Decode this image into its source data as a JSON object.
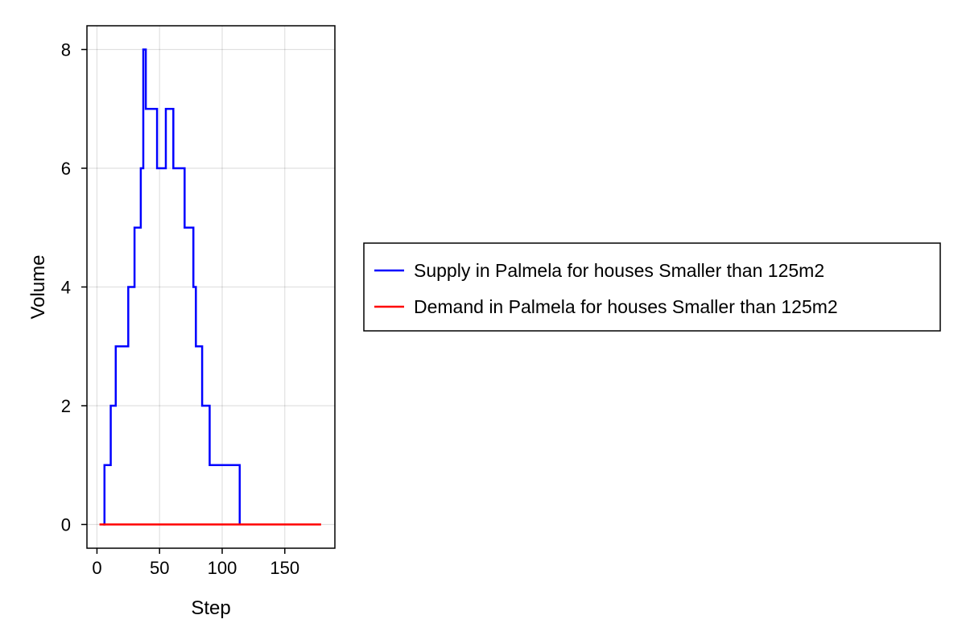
{
  "chart_data": {
    "type": "line",
    "xlabel": "Step",
    "ylabel": "Volume",
    "xlim": [
      -8,
      190
    ],
    "ylim": [
      -0.4,
      8.4
    ],
    "xticks": [
      0,
      50,
      100,
      150
    ],
    "yticks": [
      0,
      2,
      4,
      6,
      8
    ],
    "grid": true,
    "legend_position": "right",
    "series": [
      {
        "name": "Supply in Palmela for houses Smaller than 125m2",
        "color": "#0000ff",
        "x": [
          5,
          5,
          6,
          6,
          11,
          11,
          13,
          13,
          15,
          15,
          25,
          25,
          28,
          28,
          30,
          30,
          35,
          35,
          37,
          37,
          39,
          39,
          44,
          44,
          48,
          48,
          55,
          55,
          61,
          61,
          63,
          63,
          70,
          70,
          77,
          77,
          79,
          79,
          81,
          81,
          84,
          84,
          86,
          86,
          90,
          90,
          114,
          114
        ],
        "y": [
          0,
          0,
          0,
          1,
          1,
          2,
          2,
          2,
          2,
          3,
          3,
          4,
          4,
          4,
          4,
          5,
          5,
          6,
          6,
          8,
          8,
          7,
          7,
          7,
          7,
          6,
          6,
          7,
          7,
          6,
          6,
          6,
          6,
          5,
          5,
          4,
          4,
          3,
          3,
          3,
          3,
          2,
          2,
          2,
          2,
          1,
          1,
          0
        ]
      },
      {
        "name": "Demand in Palmela for houses Smaller than 125m2",
        "color": "#ff0000",
        "x": [
          2,
          179
        ],
        "y": [
          0,
          0
        ]
      }
    ]
  }
}
